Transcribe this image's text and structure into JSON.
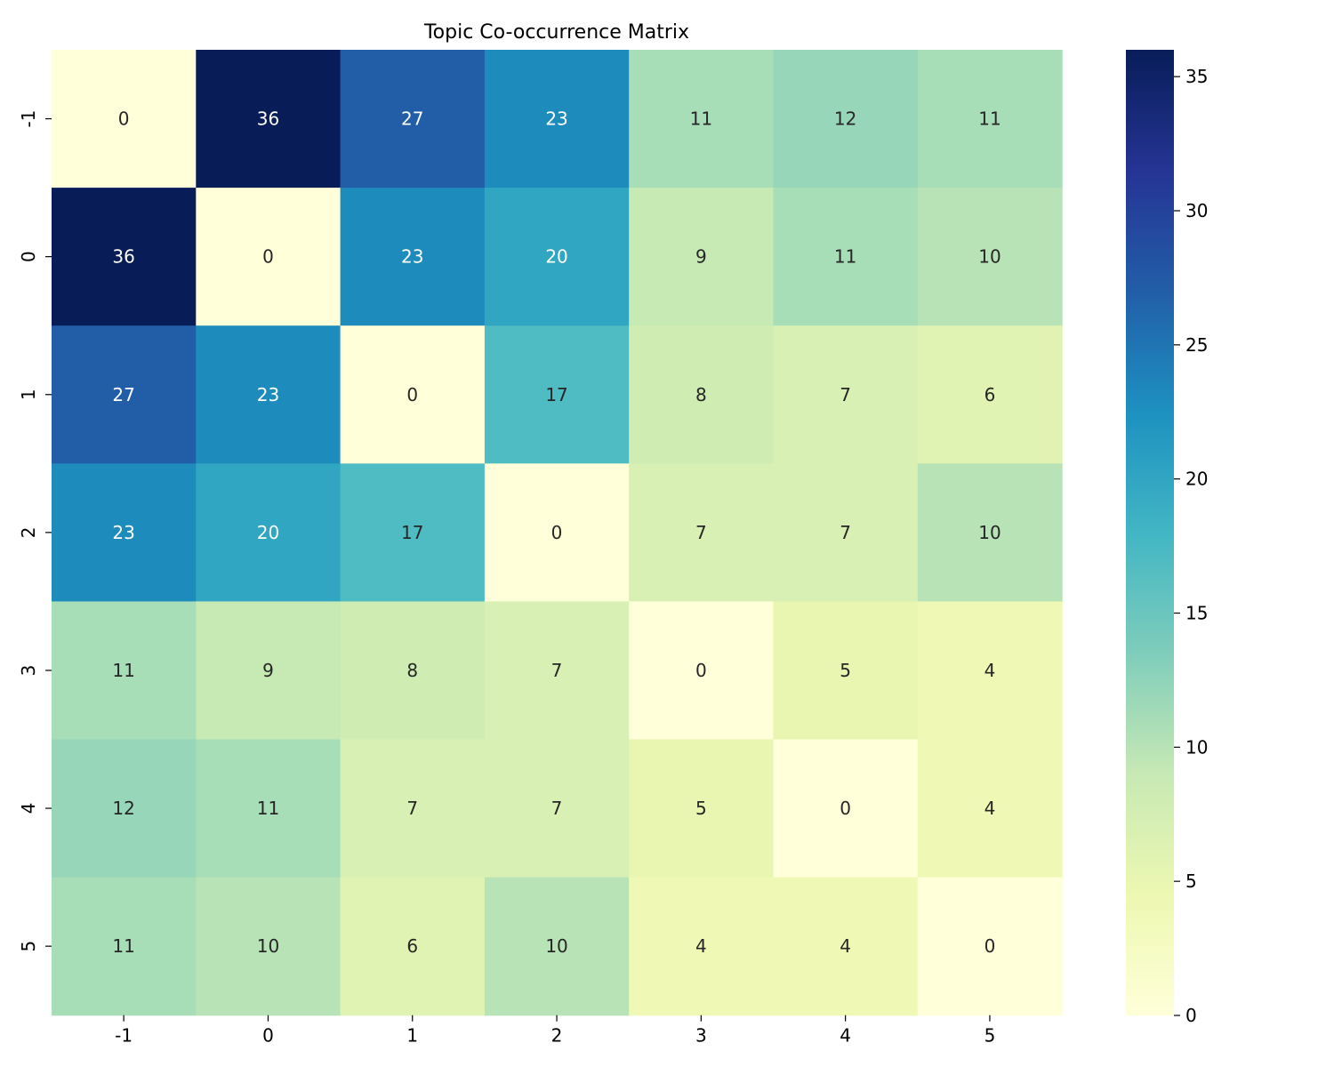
{
  "chart_data": {
    "type": "heatmap",
    "title": "Topic Co-occurrence Matrix",
    "xlabel": "",
    "ylabel": "",
    "x_categories": [
      "-1",
      "0",
      "1",
      "2",
      "3",
      "4",
      "5"
    ],
    "y_categories": [
      "-1",
      "0",
      "1",
      "2",
      "3",
      "4",
      "5"
    ],
    "values": [
      [
        0,
        36,
        27,
        23,
        11,
        12,
        11
      ],
      [
        36,
        0,
        23,
        20,
        9,
        11,
        10
      ],
      [
        27,
        23,
        0,
        17,
        8,
        7,
        6
      ],
      [
        23,
        20,
        17,
        0,
        7,
        7,
        10
      ],
      [
        11,
        9,
        8,
        7,
        0,
        5,
        4
      ],
      [
        12,
        11,
        7,
        7,
        5,
        0,
        4
      ],
      [
        11,
        10,
        6,
        10,
        4,
        4,
        0
      ]
    ],
    "colormap": "YlGnBu",
    "colormap_stops": [
      "#ffffd9",
      "#edf8b1",
      "#c7e9b4",
      "#7fcdbb",
      "#41b6c4",
      "#1d91c0",
      "#225ea8",
      "#253494",
      "#081d58"
    ],
    "vmin": 0,
    "vmax": 36,
    "colorbar_ticks": [
      0,
      5,
      10,
      15,
      20,
      25,
      30,
      35
    ],
    "annotations": true,
    "grid": false,
    "legend": "colorbar-right"
  }
}
